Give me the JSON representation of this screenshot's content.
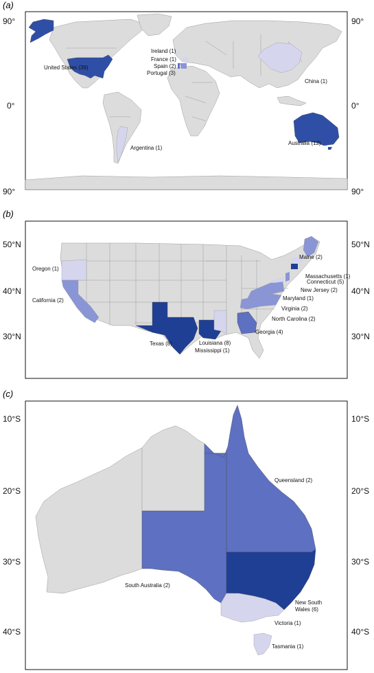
{
  "colors": {
    "land": "#dcdcdc",
    "level_1": "#d5d5ee",
    "level_2": "#8a95d6",
    "level_3": "#5d70c2",
    "level_4": "#2f4fa7",
    "level_5": "#1f3f95"
  },
  "panels": [
    {
      "letter": "(a)",
      "ticks": [
        "90°",
        "0°",
        "90°"
      ],
      "regions": [
        {
          "label": "United States (39)",
          "count": 39
        },
        {
          "label": "Ireland (1)",
          "count": 1
        },
        {
          "label": "France (1)",
          "count": 1
        },
        {
          "label": "Spain (2)",
          "count": 2
        },
        {
          "label": "Portugal (3)",
          "count": 3
        },
        {
          "label": "China (1)",
          "count": 1
        },
        {
          "label": "Argentina (1)",
          "count": 1
        },
        {
          "label": "Australia (12)",
          "count": 12
        }
      ]
    },
    {
      "letter": "(b)",
      "ticks": [
        "50°N",
        "40°N",
        "30°N"
      ],
      "regions": [
        {
          "label": "Oregon (1)",
          "count": 1
        },
        {
          "label": "California (2)",
          "count": 2
        },
        {
          "label": "Texas (8)",
          "count": 8
        },
        {
          "label": "Louisiana (8)",
          "count": 8
        },
        {
          "label": "Mississippi (1)",
          "count": 1
        },
        {
          "label": "Georgia (4)",
          "count": 4
        },
        {
          "label": "North Carolina (2)",
          "count": 2
        },
        {
          "label": "Virginia (2)",
          "count": 2
        },
        {
          "label": "Maryland (1)",
          "count": 1
        },
        {
          "label": "New Jersey (2)",
          "count": 2
        },
        {
          "label": "Connecticut (5)",
          "count": 5
        },
        {
          "label": "Massachusetts (1)",
          "count": 1
        },
        {
          "label": "Maine (2)",
          "count": 2
        }
      ]
    },
    {
      "letter": "(c)",
      "ticks": [
        "10°S",
        "20°S",
        "30°S",
        "40°S"
      ],
      "regions": [
        {
          "label": "Queensland (2)",
          "count": 2
        },
        {
          "label": "South Australia (2)",
          "count": 2
        },
        {
          "label": "New South",
          "label2": "Wales (6)",
          "count": 6
        },
        {
          "label": "Victoria (1)",
          "count": 1
        },
        {
          "label": "Tasmania (1)",
          "count": 1
        }
      ]
    }
  ]
}
